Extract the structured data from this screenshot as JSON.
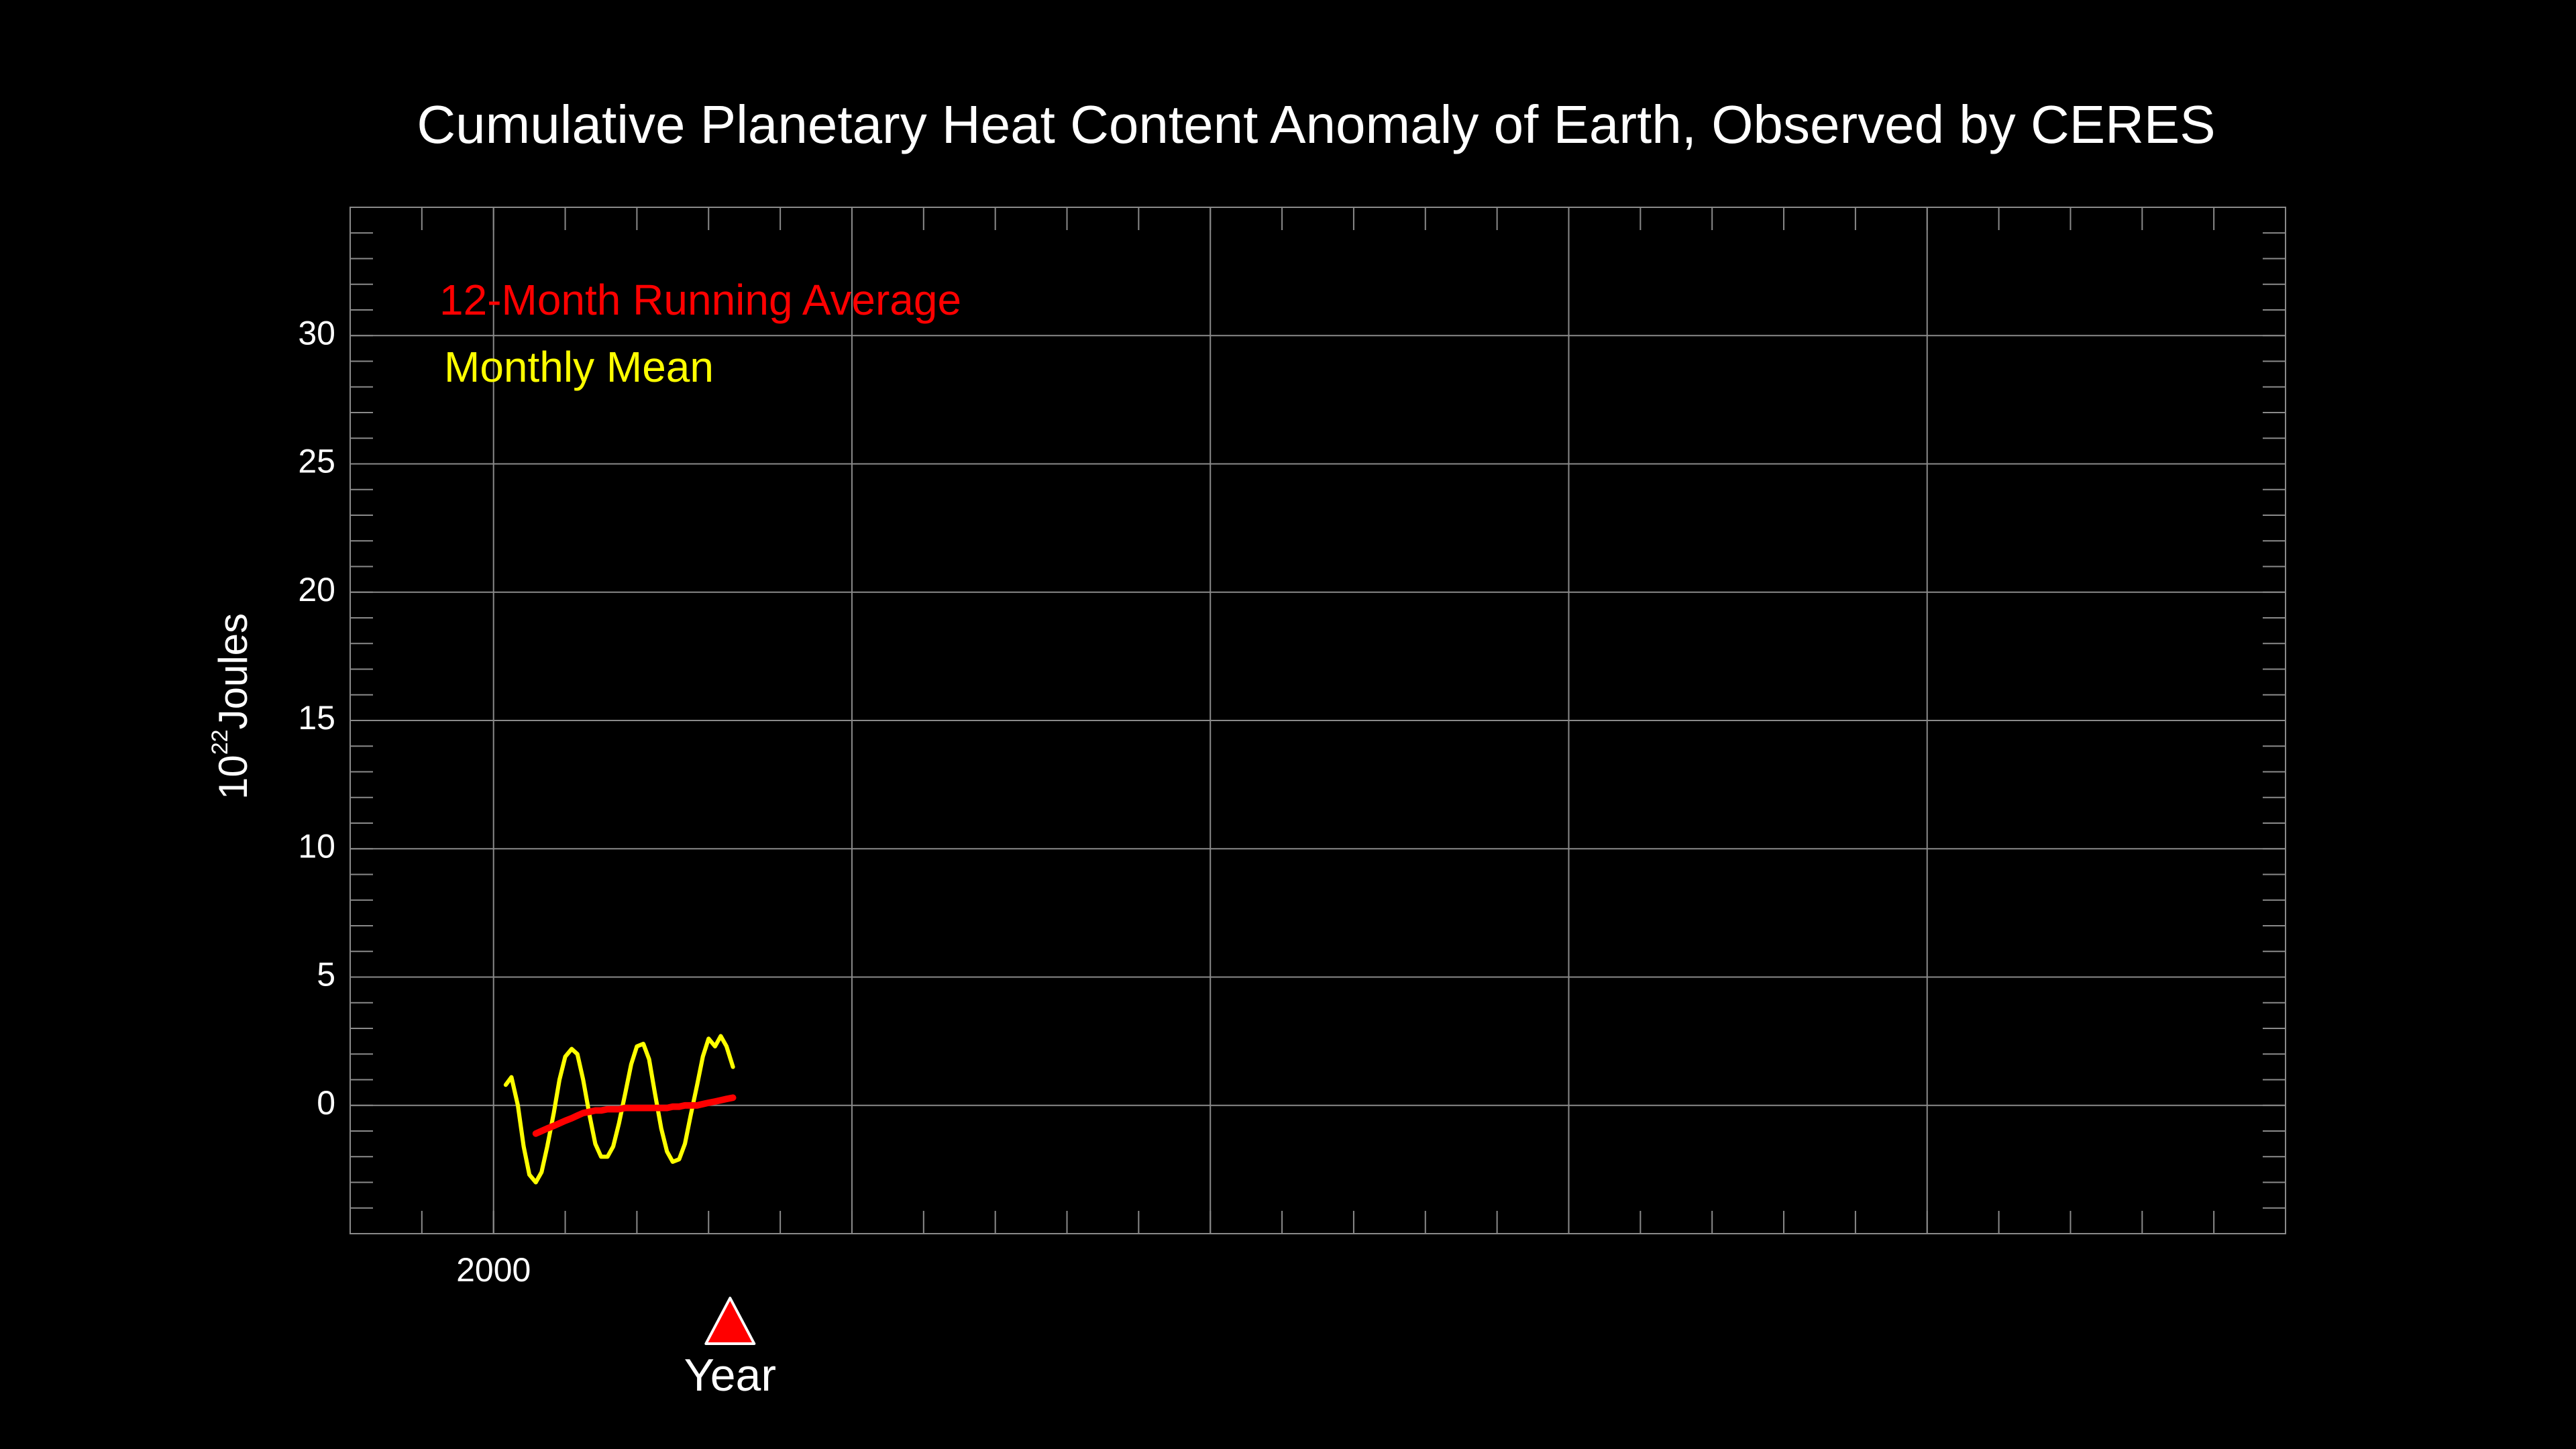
{
  "chart_data": {
    "type": "line",
    "title": "Cumulative Planetary Heat Content Anomaly of Earth, Observed by CERES",
    "y_label": {
      "base": "10",
      "exponent": "22",
      "unit": "Joules"
    },
    "x_label": "Year",
    "x": [
      2000.17,
      2000.25,
      2000.34,
      2000.42,
      2000.5,
      2000.59,
      2000.67,
      2000.75,
      2000.84,
      2000.92,
      2001.0,
      2001.09,
      2001.17,
      2001.25,
      2001.34,
      2001.42,
      2001.5,
      2001.59,
      2001.67,
      2001.75,
      2001.84,
      2001.92,
      2002.0,
      2002.09,
      2002.17,
      2002.25,
      2002.34,
      2002.42,
      2002.5,
      2002.59,
      2002.67,
      2002.75,
      2002.84,
      2002.92,
      2003.0,
      2003.09,
      2003.17,
      2003.25,
      2003.34
    ],
    "series": [
      {
        "name": "12-Month Running Average",
        "color": "#ff0000",
        "width": 4,
        "values": [
          null,
          null,
          null,
          null,
          null,
          -1.1,
          -1.0,
          -0.9,
          -0.8,
          -0.7,
          -0.6,
          -0.5,
          -0.4,
          -0.3,
          -0.25,
          -0.2,
          -0.2,
          -0.15,
          -0.15,
          -0.15,
          -0.1,
          -0.1,
          -0.1,
          -0.1,
          -0.1,
          -0.1,
          -0.1,
          -0.1,
          -0.05,
          -0.05,
          0.0,
          0.0,
          0.0,
          0.05,
          0.1,
          0.15,
          0.2,
          0.25,
          0.3
        ]
      },
      {
        "name": "Monthly Mean",
        "color": "#ffff00",
        "width": 2.5,
        "values": [
          0.8,
          1.1,
          0.0,
          -1.6,
          -2.7,
          -3.0,
          -2.6,
          -1.6,
          -0.3,
          1.0,
          1.9,
          2.2,
          2.0,
          1.0,
          -0.4,
          -1.5,
          -2.0,
          -2.0,
          -1.6,
          -0.7,
          0.5,
          1.6,
          2.3,
          2.4,
          1.8,
          0.5,
          -0.9,
          -1.8,
          -2.2,
          -2.1,
          -1.5,
          -0.4,
          0.8,
          1.9,
          2.6,
          2.3,
          2.7,
          2.3,
          1.5
        ]
      }
    ],
    "xlim": [
      1998,
      2025
    ],
    "ylim": [
      -5,
      35
    ],
    "xticks": [
      2000
    ],
    "yticks": [
      0,
      5,
      10,
      15,
      20,
      25,
      30
    ],
    "x_gridlines": [
      2000,
      2005,
      2010,
      2015,
      2020
    ],
    "xminor": [
      1999,
      2000,
      2001,
      2002,
      2003,
      2004,
      2005,
      2006,
      2007,
      2008,
      2009,
      2010,
      2011,
      2012,
      2013,
      2014,
      2015,
      2016,
      2017,
      2018,
      2019,
      2020,
      2021,
      2022,
      2023,
      2024
    ],
    "yminor": [
      -4,
      -3,
      -2,
      -1,
      0,
      1,
      2,
      3,
      4,
      5,
      6,
      7,
      8,
      9,
      10,
      11,
      12,
      13,
      14,
      15,
      16,
      17,
      18,
      19,
      20,
      21,
      22,
      23,
      24,
      25,
      26,
      27,
      28,
      29,
      30,
      31,
      32,
      33,
      34
    ],
    "grid": true,
    "legend": "upper left",
    "marker": {
      "x": 2003.3,
      "color": "#ff0000"
    }
  }
}
